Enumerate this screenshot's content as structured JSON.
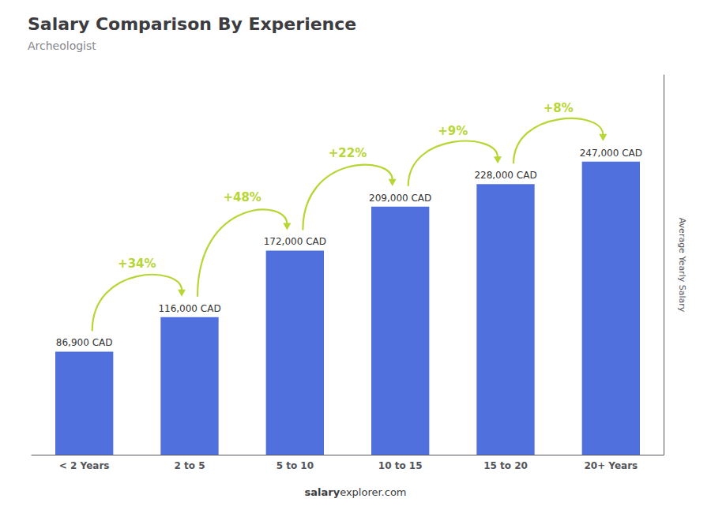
{
  "chart_data": {
    "type": "bar",
    "title": "Salary Comparison By Experience",
    "subtitle": "Archeologist",
    "ylabel": "Average Yearly Salary",
    "footer": [
      "salary",
      "explorer.com"
    ],
    "categories": [
      "< 2 Years",
      "2 to 5",
      "5 to 10",
      "10 to 15",
      "15 to 20",
      "20+ Years"
    ],
    "values": [
      86900,
      116000,
      172000,
      209000,
      228000,
      247000
    ],
    "value_labels": [
      "86,900 CAD",
      "116,000 CAD",
      "172,000 CAD",
      "209,000 CAD",
      "228,000 CAD",
      "247,000 CAD"
    ],
    "data_labels": true,
    "annotations": [
      {
        "text": "+34%",
        "from": "< 2 Years",
        "to": "2 to 5"
      },
      {
        "text": "+48%",
        "from": "2 to 5",
        "to": "5 to 10"
      },
      {
        "text": "+22%",
        "from": "5 to 10",
        "to": "10 to 15"
      },
      {
        "text": "+9%",
        "from": "10 to 15",
        "to": "15 to 20"
      },
      {
        "text": "+8%",
        "from": "15 to 20",
        "to": "20+ Years"
      }
    ],
    "ylim": [
      0,
      320000
    ],
    "tick_labels": "x",
    "grid": false
  }
}
